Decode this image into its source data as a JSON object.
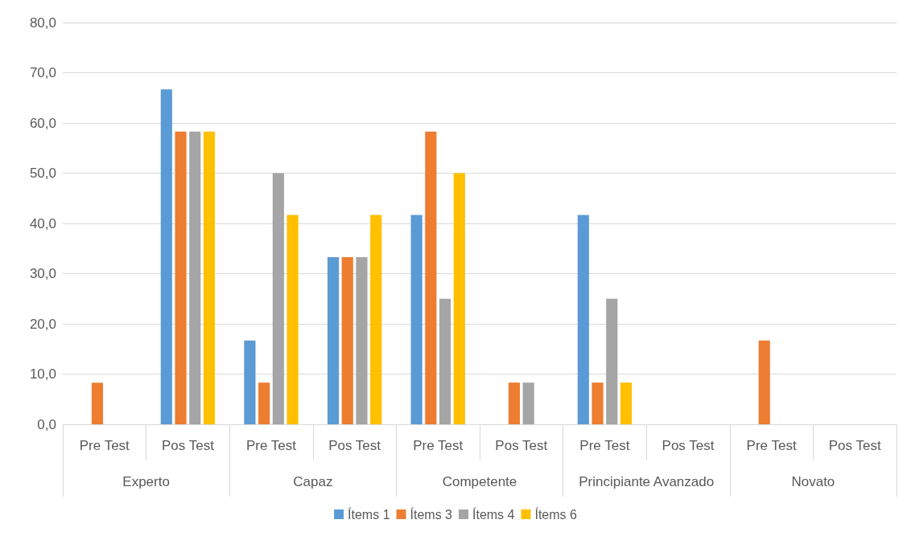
{
  "chart_data": {
    "type": "bar",
    "categories": [
      "Pre Test",
      "Pos Test",
      "Pre Test",
      "Pos Test",
      "Pre Test",
      "Pos Test",
      "Pre Test",
      "Pos Test",
      "Pre Test",
      "Pos Test"
    ],
    "annotations": [
      "Experto",
      "Capaz",
      "Competente",
      "Principiante Avanzado",
      "Novato"
    ],
    "series": [
      {
        "name": "Ítems 1",
        "color": "#5b9bd5",
        "values": [
          0,
          66.7,
          16.7,
          33.3,
          41.7,
          0,
          41.7,
          0,
          0,
          0
        ]
      },
      {
        "name": "Ítems 3",
        "color": "#ed7d31",
        "values": [
          8.3,
          58.3,
          8.3,
          33.3,
          58.3,
          8.3,
          8.3,
          0,
          16.7,
          0
        ]
      },
      {
        "name": "Ítems 4",
        "color": "#a5a5a5",
        "values": [
          0,
          58.3,
          50,
          33.3,
          25,
          8.3,
          25,
          0,
          0,
          0
        ]
      },
      {
        "name": "Ítems 6",
        "color": "#ffc000",
        "values": [
          0,
          58.3,
          41.7,
          41.7,
          50,
          0,
          8.3,
          0,
          0,
          0
        ]
      }
    ],
    "ylim": [
      0,
      80
    ],
    "yticks": [
      {
        "value": 0,
        "label": "0,0"
      },
      {
        "value": 10,
        "label": "10,0"
      },
      {
        "value": 20,
        "label": "20,0"
      },
      {
        "value": 30,
        "label": "30,0"
      },
      {
        "value": 40,
        "label": "40,0"
      },
      {
        "value": 50,
        "label": "50,0"
      },
      {
        "value": 60,
        "label": "60,0"
      },
      {
        "value": 70,
        "label": "70,0"
      },
      {
        "value": 80,
        "label": "80,0"
      }
    ],
    "grid": "y",
    "legend": "bottom"
  }
}
